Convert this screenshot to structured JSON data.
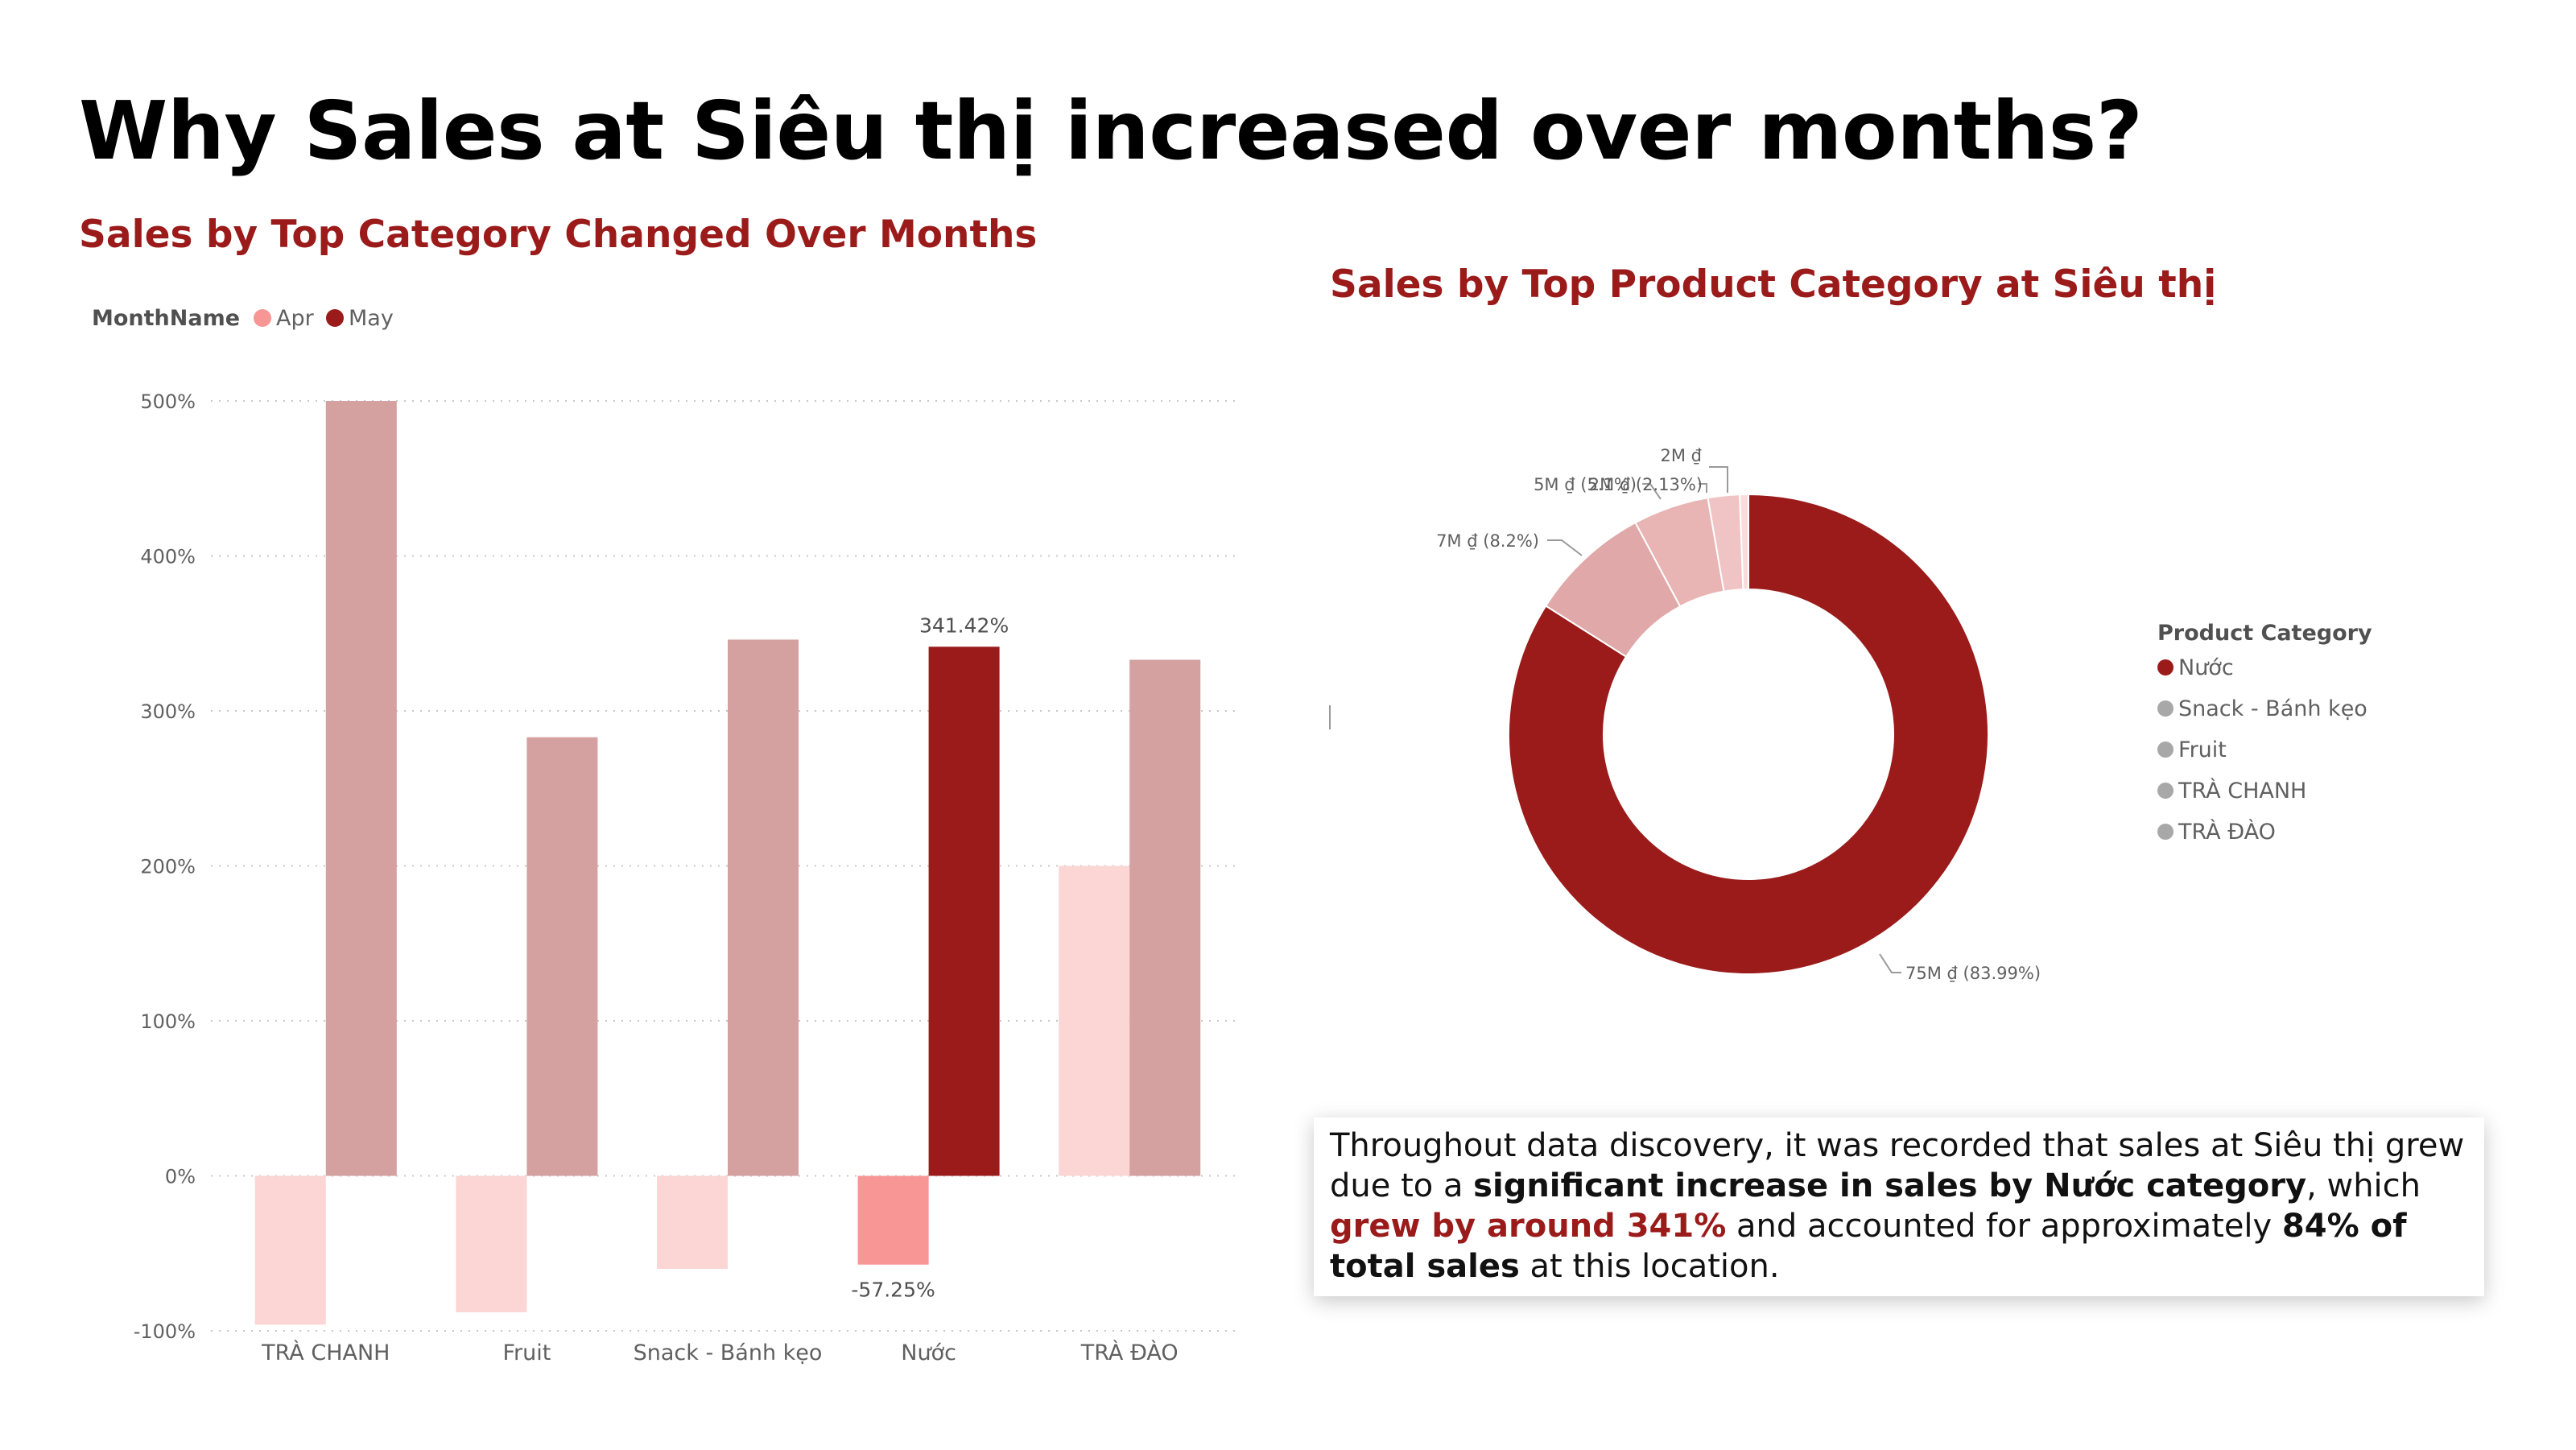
{
  "page": {
    "title": "Why Sales at Siêu thị increased over months?"
  },
  "colors": {
    "accent": "#9b1b1b",
    "apr_bar": "#fcd5d5",
    "apr_highlight": "#f89595",
    "may_bar": "#d4a0a0",
    "may_highlight": "#9b1b1b",
    "donut": [
      "#9b1b1b",
      "#e0a8a8",
      "#e8b4b4",
      "#f0c4c4",
      "#f8dcdc"
    ]
  },
  "insight": {
    "p1": "Throughout data discovery, it was recorded that sales at Siêu thị grew due to a ",
    "b1": "significant increase in sales by Nước category",
    "p2": ", which ",
    "b2": "grew by around 341%",
    "p3": " and accounted for approximately ",
    "b3": "84% of total sales",
    "p4": " at this location."
  },
  "chart_data": [
    {
      "type": "bar",
      "title": "Sales by Top Category Changed Over Months",
      "legend_title": "MonthName",
      "legend_position": "top-left",
      "categories": [
        "TRÀ CHANH",
        "Fruit",
        "Snack - Bánh kẹo",
        "Nước",
        "TRÀ ĐÀO"
      ],
      "series": [
        {
          "name": "Apr",
          "values": [
            -96,
            -88,
            -60,
            -57.25,
            200
          ]
        },
        {
          "name": "May",
          "values": [
            500,
            283,
            346,
            341.42,
            333
          ]
        }
      ],
      "highlight_category": "Nước",
      "data_labels": [
        {
          "category": "Nước",
          "series": "May",
          "text": "341.42%"
        },
        {
          "category": "Nước",
          "series": "Apr",
          "text": "-57.25%"
        }
      ],
      "ylim": [
        -100,
        500
      ],
      "yticks": [
        -100,
        0,
        100,
        200,
        300,
        400,
        500
      ],
      "ytick_labels": [
        "-100%",
        "0%",
        "100%",
        "200%",
        "300%",
        "400%",
        "500%"
      ],
      "grid": true
    },
    {
      "type": "pie",
      "donut": true,
      "title": "Sales by Top Product Category at Siêu thị",
      "legend_title": "Product Category",
      "legend_position": "right",
      "categories": [
        "Nước",
        "Snack - Bánh kẹo",
        "Fruit",
        "TRÀ CHANH",
        "TRÀ ĐÀO"
      ],
      "values": [
        83.99,
        8.2,
        5.1,
        2.13,
        0.58
      ],
      "slice_labels": [
        "75M ₫ (83.99%)",
        "7M ₫ (8.2%)",
        "5M ₫ (5.1%)",
        "2M ₫ (2.13%)",
        ""
      ],
      "top_label": "2M ₫"
    }
  ]
}
